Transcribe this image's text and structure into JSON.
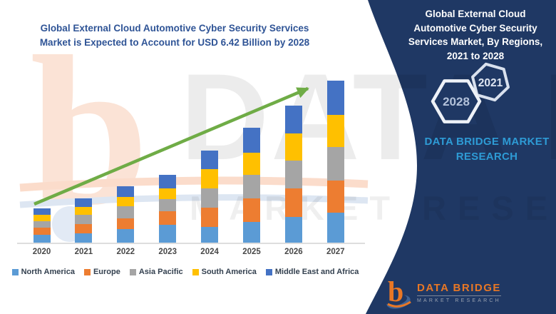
{
  "title": {
    "line1": "Global External Cloud Automotive Cyber Security Services",
    "line2": "Market is Expected to Account for USD 6.42 Billion by 2028",
    "color": "#2F5496"
  },
  "chart_data": {
    "type": "bar",
    "stacked": true,
    "unit": "USD Billion",
    "title": "Global External Cloud Automotive Cyber Security Services Market is Expected to Account for USD 6.42 Billion by 2028",
    "categories": [
      "2020",
      "2021",
      "2022",
      "2023",
      "2024",
      "2025",
      "2026",
      "2027"
    ],
    "series": [
      {
        "name": "North America",
        "color": "#5B9BD5",
        "values": [
          0.29,
          0.33,
          0.48,
          0.62,
          0.55,
          0.72,
          0.89,
          1.03
        ]
      },
      {
        "name": "Europe",
        "color": "#ED7D31",
        "values": [
          0.24,
          0.31,
          0.36,
          0.45,
          0.65,
          0.79,
          0.96,
          1.08
        ]
      },
      {
        "name": "Asia Pacific",
        "color": "#A5A5A5",
        "values": [
          0.22,
          0.31,
          0.41,
          0.41,
          0.65,
          0.79,
          0.93,
          1.12
        ]
      },
      {
        "name": "South America",
        "color": "#FFC000",
        "values": [
          0.21,
          0.26,
          0.31,
          0.36,
          0.64,
          0.74,
          0.91,
          1.08
        ]
      },
      {
        "name": "Middle East and Africa",
        "color": "#4472C4",
        "values": [
          0.21,
          0.29,
          0.36,
          0.45,
          0.62,
          0.84,
          0.93,
          1.15
        ]
      }
    ],
    "totals_estimated": [
      1.17,
      1.5,
      1.92,
      2.29,
      3.11,
      3.88,
      4.62,
      5.46
    ],
    "projection_note": "USD 6.42 Billion by 2028",
    "ylim": [
      0,
      6
    ],
    "y_axis_visible": false,
    "gridlines": false,
    "legend_position": "bottom",
    "trend_arrow": {
      "show": true,
      "color": "#6FAC46"
    }
  },
  "right_panel": {
    "bg": "#1F3864",
    "title_lines": [
      "Global External Cloud",
      "Automotive Cyber Security",
      "Services Market, By Regions,",
      "2021 to 2028"
    ],
    "hexagon_large": "2028",
    "hexagon_small": "2021",
    "brand_lines": [
      "DATA BRIDGE MARKET",
      "RESEARCH"
    ],
    "brand_color": "#2E9BD5"
  },
  "logo": {
    "name": "DATA BRIDGE",
    "tagline": "MARKET RESEARCH",
    "orange": "#E87725"
  },
  "watermark": {
    "line1": "DATA BRIDGE",
    "line2": "MARKET RESEARCH"
  }
}
